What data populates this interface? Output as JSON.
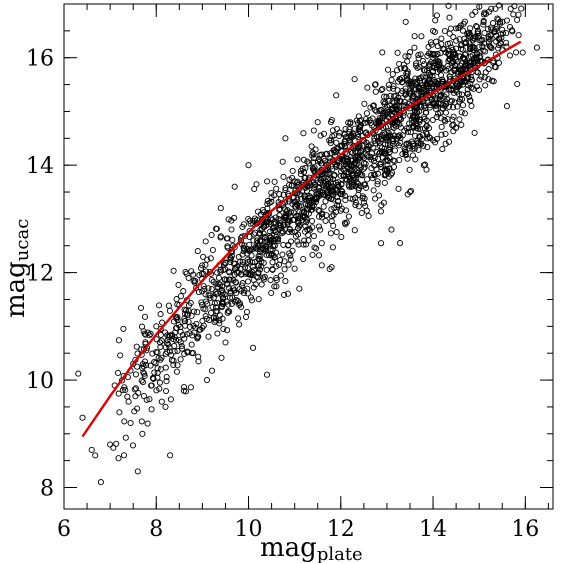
{
  "chart_data": {
    "type": "scatter",
    "xlabel": "mag",
    "xlabel_sub": "plate",
    "ylabel": "mag",
    "ylabel_sub": "ucac",
    "xlim": [
      6,
      16.6
    ],
    "ylim": [
      7.6,
      17.0
    ],
    "x_ticks": [
      6,
      8,
      10,
      12,
      14,
      16
    ],
    "y_ticks": [
      8,
      10,
      12,
      14,
      16
    ],
    "x_minor_step": 0.5,
    "y_minor_step": 0.5,
    "grid": false,
    "marker": "open-circle",
    "marker_color": "#000000",
    "fit_color": "#dd0000",
    "scatter_points": [
      [
        6.4,
        9.3
      ],
      [
        6.6,
        8.7
      ],
      [
        6.8,
        8.1
      ],
      [
        7.0,
        8.8
      ],
      [
        7.1,
        9.9
      ],
      [
        7.2,
        9.4
      ],
      [
        7.3,
        8.6
      ],
      [
        7.4,
        9.6
      ],
      [
        7.5,
        10.3
      ],
      [
        7.6,
        8.3
      ],
      [
        7.7,
        9.0
      ],
      [
        7.8,
        10.6
      ],
      [
        7.9,
        9.9
      ],
      [
        8.0,
        11.0
      ],
      [
        8.1,
        10.2
      ],
      [
        8.2,
        9.5
      ],
      [
        8.3,
        8.6
      ],
      [
        8.4,
        10.8
      ],
      [
        8.5,
        11.4
      ],
      [
        8.6,
        9.8
      ],
      [
        8.7,
        11.9
      ],
      [
        8.8,
        10.5
      ],
      [
        8.9,
        12.4
      ],
      [
        9.0,
        11.1
      ],
      [
        9.1,
        10.0
      ],
      [
        9.2,
        12.7
      ],
      [
        9.3,
        11.6
      ],
      [
        9.4,
        13.2
      ],
      [
        9.5,
        10.7
      ],
      [
        9.6,
        12.2
      ],
      [
        9.7,
        13.6
      ],
      [
        9.8,
        11.4
      ],
      [
        9.9,
        12.9
      ],
      [
        10.0,
        14.0
      ],
      [
        10.1,
        10.6
      ],
      [
        10.2,
        12.5
      ],
      [
        10.4,
        10.1
      ],
      [
        10.5,
        13.4
      ],
      [
        10.6,
        11.9
      ],
      [
        10.8,
        14.5
      ],
      [
        10.9,
        12.8
      ],
      [
        11.0,
        13.7
      ],
      [
        11.1,
        11.7
      ],
      [
        11.2,
        14.1
      ],
      [
        11.3,
        12.6
      ],
      [
        11.5,
        14.8
      ],
      [
        11.6,
        13.1
      ],
      [
        11.8,
        12.1
      ],
      [
        11.9,
        15.3
      ],
      [
        12.0,
        13.8
      ],
      [
        12.1,
        12.9
      ],
      [
        12.3,
        15.6
      ],
      [
        12.4,
        14.0
      ],
      [
        12.5,
        13.3
      ],
      [
        12.7,
        15.1
      ],
      [
        12.8,
        13.7
      ],
      [
        12.9,
        16.1
      ],
      [
        13.0,
        14.5
      ],
      [
        13.1,
        12.8
      ],
      [
        13.3,
        15.8
      ],
      [
        13.4,
        14.2
      ],
      [
        13.5,
        13.5
      ],
      [
        13.6,
        16.4
      ],
      [
        13.7,
        15.0
      ],
      [
        13.8,
        14.0
      ],
      [
        14.0,
        16.5
      ],
      [
        14.1,
        15.5
      ],
      [
        14.2,
        14.3
      ],
      [
        14.4,
        15.9
      ],
      [
        14.5,
        14.7
      ],
      [
        14.6,
        16.6
      ],
      [
        14.8,
        15.2
      ],
      [
        14.9,
        14.6
      ],
      [
        15.0,
        16.2
      ],
      [
        15.2,
        15.6
      ],
      [
        15.4,
        16.0
      ],
      [
        15.6,
        15.1
      ],
      [
        15.8,
        16.1
      ]
    ],
    "density_clusters": [
      {
        "x": 13.8,
        "y": 15.2,
        "sx": 0.9,
        "sy": 0.55,
        "n": 650
      },
      {
        "x": 12.0,
        "y": 13.9,
        "sx": 0.9,
        "sy": 0.45,
        "n": 520
      },
      {
        "x": 10.5,
        "y": 12.7,
        "sx": 0.8,
        "sy": 0.45,
        "n": 380
      },
      {
        "x": 9.0,
        "y": 11.4,
        "sx": 0.7,
        "sy": 0.55,
        "n": 220
      },
      {
        "x": 8.0,
        "y": 10.4,
        "sx": 0.5,
        "sy": 0.55,
        "n": 90
      },
      {
        "x": 14.8,
        "y": 15.9,
        "sx": 0.5,
        "sy": 0.35,
        "n": 180
      }
    ],
    "fit_line": {
      "x": [
        6.4,
        7.0,
        7.5,
        8.0,
        8.5,
        9.0,
        9.5,
        10.0,
        10.5,
        11.0,
        11.5,
        12.0,
        12.5,
        13.0,
        13.5,
        14.0,
        14.5,
        15.0,
        15.5,
        15.9
      ],
      "y": [
        8.95,
        9.7,
        10.3,
        10.85,
        11.35,
        11.85,
        12.3,
        12.75,
        13.15,
        13.5,
        13.85,
        14.2,
        14.5,
        14.8,
        15.1,
        15.35,
        15.6,
        15.85,
        16.1,
        16.3
      ]
    }
  }
}
